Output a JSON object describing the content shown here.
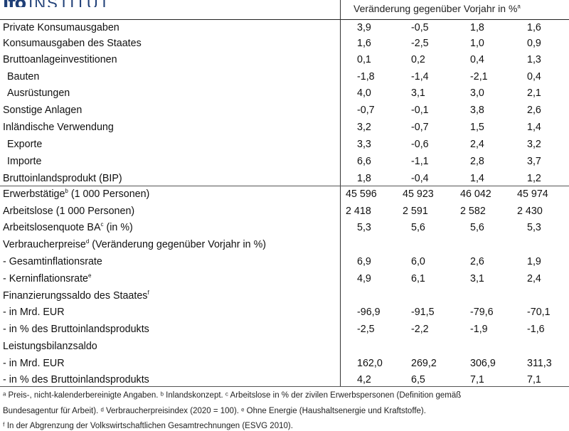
{
  "logo": {
    "mark": "ifo",
    "text": "INSTITUT"
  },
  "header": {
    "change_label": "Veränderung gegenüber Vorjahr in %",
    "change_sup": "a"
  },
  "rows": [
    {
      "label": "Private Konsumausgaben",
      "sup": "",
      "values": [
        "3,9",
        "-0,5",
        "1,8",
        "1,6"
      ]
    },
    {
      "label": "Konsumausgaben des Staates",
      "sup": "",
      "values": [
        "1,6",
        "-2,5",
        "1,0",
        "0,9"
      ]
    },
    {
      "label": "Bruttoanlageinvestitionen",
      "sup": "",
      "values": [
        "0,1",
        "0,2",
        "0,4",
        "1,3"
      ]
    },
    {
      "label": "Bauten",
      "sup": "",
      "values": [
        "-1,8",
        "-1,4",
        "-2,1",
        "0,4"
      ]
    },
    {
      "label": "Ausrüstungen",
      "sup": "",
      "values": [
        "4,0",
        "3,1",
        "3,0",
        "2,1"
      ]
    },
    {
      "label": "Sonstige Anlagen",
      "sup": "",
      "values": [
        "-0,7",
        "-0,1",
        "3,8",
        "2,6"
      ]
    },
    {
      "label": "Inländische Verwendung",
      "sup": "",
      "values": [
        "3,2",
        "-0,7",
        "1,5",
        "1,4"
      ]
    },
    {
      "label": "Exporte",
      "sup": "",
      "values": [
        "3,3",
        "-0,6",
        "2,4",
        "3,2"
      ]
    },
    {
      "label": "Importe",
      "sup": "",
      "values": [
        "6,6",
        "-1,1",
        "2,8",
        "3,7"
      ]
    },
    {
      "label": "Bruttoinlandsprodukt (BIP)",
      "sup": "",
      "values": [
        "1,8",
        "-0,4",
        "1,4",
        "1,2"
      ]
    },
    {
      "label": "Erwerbstätige",
      "sup": "b",
      "suffix": " (1 000 Personen)",
      "values": [
        "45 596",
        "45 923",
        "46 042",
        "45 974"
      ]
    },
    {
      "label": "Arbeitslose (1 000 Personen)",
      "sup": "",
      "values": [
        "2 418",
        "2 591",
        "2 582",
        "2 430"
      ]
    },
    {
      "label": "Arbeitslosenquote BA",
      "sup": "c",
      "suffix": " (in %)",
      "values": [
        "5,3",
        "5,6",
        "5,6",
        "5,3"
      ]
    },
    {
      "label": "Verbraucherpreise",
      "sup": "d",
      "suffix": " (Veränderung gegenüber Vorjahr in %)",
      "values": [
        "",
        "",
        "",
        ""
      ]
    },
    {
      "label": " - Gesamtinflationsrate",
      "sup": "",
      "values": [
        "6,9",
        "6,0",
        "2,6",
        "1,9"
      ]
    },
    {
      "label": " - Kerninflationsrate",
      "sup": "e",
      "values": [
        "4,9",
        "6,1",
        "3,1",
        "2,4"
      ]
    },
    {
      "label": "Finanzierungssaldo des Staates",
      "sup": "f",
      "values": [
        "",
        "",
        "",
        ""
      ]
    },
    {
      "label": " - in Mrd. EUR",
      "sup": "",
      "values": [
        "-96,9",
        "-91,5",
        "-79,6",
        "-70,1"
      ]
    },
    {
      "label": " - in % des Bruttoinlandsprodukts",
      "sup": "",
      "values": [
        "-2,5",
        "-2,2",
        "-1,9",
        "-1,6"
      ]
    },
    {
      "label": "Leistungsbilanzsaldo",
      "sup": "",
      "values": [
        "",
        "",
        "",
        ""
      ]
    },
    {
      "label": " - in Mrd. EUR",
      "sup": "",
      "values": [
        "162,0",
        "269,2",
        "306,9",
        "311,3"
      ]
    },
    {
      "label": " - in % des Bruttoinlandsprodukts",
      "sup": "",
      "values": [
        "4,2",
        "6,5",
        "7,1",
        "7,1"
      ]
    }
  ],
  "footnotes": {
    "line1": "ᵃ Preis-, nicht-kalenderbereinigte Angaben. ᵇ Inlandskonzept. ᶜ Arbeitslose in % der zivilen Erwerbspersonen (Definition gemäß",
    "line2": "Bundesagentur für Arbeit). ᵈ Verbraucherpreisindex (2020 = 100). ᵉ Ohne Energie (Haushaltsenergie und Kraftstoffe).",
    "line3": "ᶠ In der Abgrenzung der Volkswirtschaftlichen Gesamtrechnungen (ESVG 2010)."
  }
}
